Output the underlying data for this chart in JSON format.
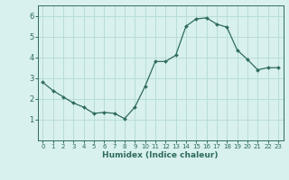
{
  "x": [
    0,
    1,
    2,
    3,
    4,
    5,
    6,
    7,
    8,
    9,
    10,
    11,
    12,
    13,
    14,
    15,
    16,
    17,
    18,
    19,
    20,
    21,
    22,
    23
  ],
  "y": [
    2.8,
    2.4,
    2.1,
    1.8,
    1.6,
    1.3,
    1.35,
    1.3,
    1.05,
    1.6,
    2.6,
    3.8,
    3.8,
    4.1,
    5.5,
    5.85,
    5.9,
    5.6,
    5.45,
    4.35,
    3.9,
    3.4,
    3.5,
    3.5
  ],
  "line_color": "#2e6b5e",
  "marker": "D",
  "marker_size": 2.0,
  "bg_color": "#d8f0ee",
  "grid_color": "#b8ddd8",
  "xlabel": "Humidex (Indice chaleur)",
  "ylim": [
    0,
    6.5
  ],
  "xlim": [
    -0.5,
    23.5
  ],
  "yticks": [
    1,
    2,
    3,
    4,
    5,
    6
  ],
  "xticks": [
    0,
    1,
    2,
    3,
    4,
    5,
    6,
    7,
    8,
    9,
    10,
    11,
    12,
    13,
    14,
    15,
    16,
    17,
    18,
    19,
    20,
    21,
    22,
    23
  ],
  "tick_fontsize": 5.0,
  "xlabel_fontsize": 6.5
}
